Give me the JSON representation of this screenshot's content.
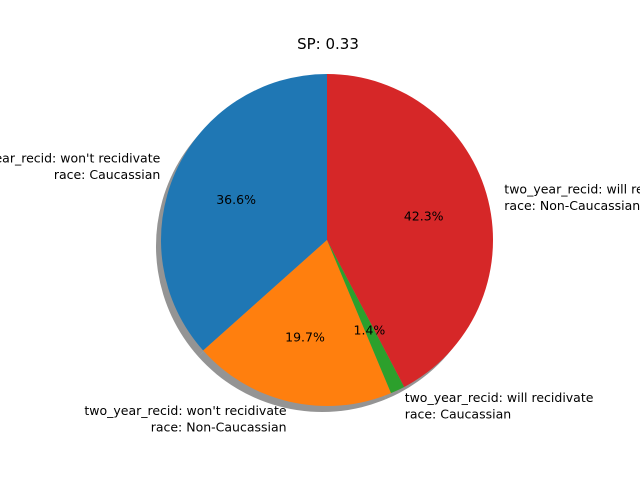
{
  "chart_data": {
    "type": "pie",
    "title": "SP: 0.33",
    "start_angle_deg": 90,
    "direction": "counterclockwise",
    "shadow": true,
    "slices": [
      {
        "label_line1": "two_year_recid: won't recidivate",
        "label_line2": "race: Caucassian",
        "value": 36.6,
        "pct_label": "36.6%",
        "color": "#1f77b4"
      },
      {
        "label_line1": "two_year_recid: won't recidivate",
        "label_line2": "race: Non-Caucassian",
        "value": 19.7,
        "pct_label": "19.7%",
        "color": "#ff7f0e"
      },
      {
        "label_line1": "two_year_recid: will recidivate",
        "label_line2": "race: Caucassian",
        "value": 1.4,
        "pct_label": "1.4%",
        "color": "#2ca02c"
      },
      {
        "label_line1": "two_year_recid: will recidivate",
        "label_line2": "race: Non-Caucassian",
        "value": 42.3,
        "pct_label": "42.3%",
        "color": "#d62728"
      }
    ]
  }
}
